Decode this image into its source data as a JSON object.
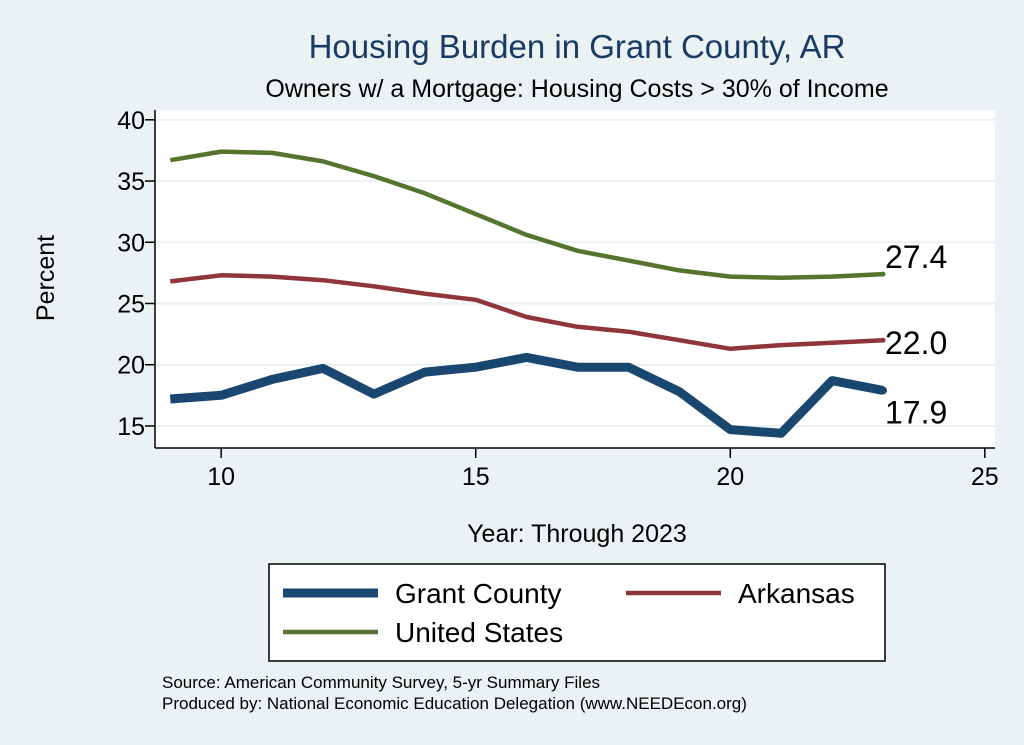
{
  "chart_data": {
    "type": "line",
    "title": "Housing Burden in Grant County, AR",
    "subtitle": "Owners w/ a Mortgage: Housing Costs > 30% of Income",
    "xlabel": "Year: Through 2023",
    "ylabel": "Percent",
    "xlim": [
      8.7,
      25.2
    ],
    "ylim": [
      13.2,
      40.8
    ],
    "xticks": [
      10,
      15,
      20,
      25
    ],
    "yticks": [
      15,
      20,
      25,
      30,
      35,
      40
    ],
    "grid": true,
    "legend_position": "bottom",
    "series": [
      {
        "name": "Grant County",
        "color": "#1a476f",
        "x": [
          9,
          10,
          11,
          12,
          13,
          14,
          15,
          16,
          17,
          18,
          19,
          20,
          21,
          22,
          23
        ],
        "values": [
          17.2,
          17.5,
          18.8,
          19.7,
          17.6,
          19.4,
          19.8,
          20.6,
          19.8,
          19.8,
          17.8,
          14.7,
          14.4,
          18.7,
          17.9
        ],
        "end_label": "17.9"
      },
      {
        "name": "Arkansas",
        "color": "#90353b",
        "x": [
          9,
          10,
          11,
          12,
          13,
          14,
          15,
          16,
          17,
          18,
          19,
          20,
          21,
          22,
          23
        ],
        "values": [
          26.8,
          27.3,
          27.2,
          26.9,
          26.4,
          25.8,
          25.3,
          23.9,
          23.1,
          22.7,
          22.0,
          21.3,
          21.6,
          21.8,
          22.0
        ],
        "end_label": "22.0"
      },
      {
        "name": "United States",
        "color": "#55752f",
        "x": [
          9,
          10,
          11,
          12,
          13,
          14,
          15,
          16,
          17,
          18,
          19,
          20,
          21,
          22,
          23
        ],
        "values": [
          36.7,
          37.4,
          37.3,
          36.6,
          35.4,
          34.0,
          32.3,
          30.6,
          29.3,
          28.5,
          27.7,
          27.2,
          27.1,
          27.2,
          27.4
        ],
        "end_label": "27.4"
      }
    ]
  },
  "source": {
    "line1": "Source: American Community Survey, 5-yr Summary Files",
    "line2": "Produced by: National Economic Education Delegation (www.NEEDEcon.org)"
  }
}
